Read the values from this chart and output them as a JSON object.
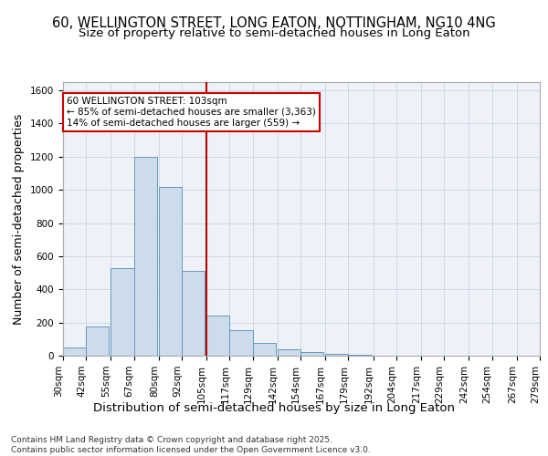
{
  "title1": "60, WELLINGTON STREET, LONG EATON, NOTTINGHAM, NG10 4NG",
  "title2": "Size of property relative to semi-detached houses in Long Eaton",
  "xlabel": "Distribution of semi-detached houses by size in Long Eaton",
  "ylabel": "Number of semi-detached properties",
  "bin_labels": [
    "30sqm",
    "42sqm",
    "55sqm",
    "67sqm",
    "80sqm",
    "92sqm",
    "105sqm",
    "117sqm",
    "129sqm",
    "142sqm",
    "154sqm",
    "167sqm",
    "179sqm",
    "192sqm",
    "204sqm",
    "217sqm",
    "229sqm",
    "242sqm",
    "254sqm",
    "267sqm",
    "279sqm"
  ],
  "bin_lefts": [
    30,
    42,
    55,
    67,
    80,
    92,
    105,
    117,
    129,
    142,
    154,
    167,
    179,
    192,
    204,
    217,
    229,
    242,
    254,
    267
  ],
  "bin_width": 12,
  "heights": [
    50,
    175,
    530,
    1200,
    1020,
    510,
    240,
    155,
    75,
    40,
    20,
    10,
    5,
    2,
    1,
    0,
    0,
    0,
    0,
    0
  ],
  "bar_color": "#ccdcec",
  "bar_edge_color": "#6699bb",
  "grid_color": "#ccd8e8",
  "bg_color": "#eef2f8",
  "property_line_x": 105,
  "property_line_color": "#bb0000",
  "annotation_line1": "60 WELLINGTON STREET: 103sqm",
  "annotation_line2": "← 85% of semi-detached houses are smaller (3,363)",
  "annotation_line3": "14% of semi-detached houses are larger (559) →",
  "annotation_box_color": "#ffffff",
  "annotation_box_edge": "#cc0000",
  "ylim": [
    0,
    1650
  ],
  "yticks": [
    0,
    200,
    400,
    600,
    800,
    1000,
    1200,
    1400,
    1600
  ],
  "footer": "Contains HM Land Registry data © Crown copyright and database right 2025.\nContains public sector information licensed under the Open Government Licence v3.0.",
  "title_fontsize": 10.5,
  "subtitle_fontsize": 9.5,
  "axis_label_fontsize": 9,
  "tick_fontsize": 7.5,
  "footer_fontsize": 6.5
}
